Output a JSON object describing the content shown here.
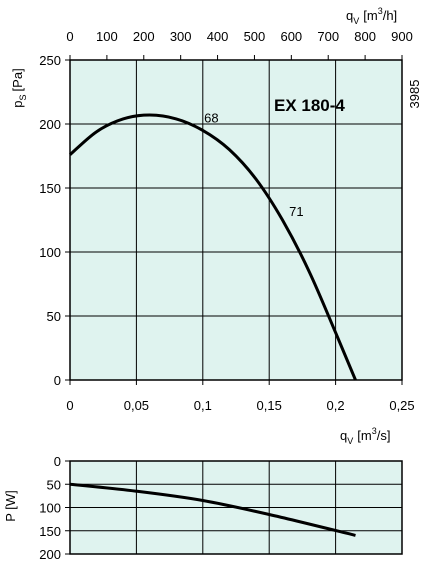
{
  "chart_data": [
    {
      "type": "line",
      "model_label": "EX 180-4",
      "code_label": "3985",
      "ylabel": "p",
      "ylabel_sub": "S",
      "ylabel_unit": "[Pa]",
      "x2label": "q",
      "x2label_sub": "V",
      "x2label_unit_a": "[m",
      "x2label_unit_sup": "3",
      "x2label_unit_b": "/h]",
      "xlim": [
        0,
        0.25
      ],
      "ylim": [
        0,
        250
      ],
      "x2lim": [
        0,
        900
      ],
      "xticks": [
        "0",
        "0,05",
        "0,1",
        "0,15",
        "0,2",
        "0,25"
      ],
      "x2ticks": [
        "0",
        "100",
        "200",
        "300",
        "400",
        "500",
        "600",
        "700",
        "800",
        "900"
      ],
      "yticks": [
        "0",
        "50",
        "100",
        "150",
        "200",
        "250"
      ],
      "grid": true,
      "series": [
        {
          "x": [
            0,
            0.02,
            0.04,
            0.06,
            0.08,
            0.1,
            0.12,
            0.14,
            0.16,
            0.18,
            0.2,
            0.215
          ],
          "y": [
            176,
            194,
            204,
            207,
            204,
            195,
            180,
            157,
            125,
            85,
            37,
            0
          ]
        }
      ],
      "annotations": [
        {
          "text": "68",
          "x": 0.101,
          "y": 201
        },
        {
          "text": "71",
          "x": 0.165,
          "y": 128
        }
      ]
    },
    {
      "type": "line",
      "ylabel": "P [W]",
      "xlabel": "q",
      "xlabel_sub": "V",
      "xlabel_unit_a": "[m",
      "xlabel_unit_sup": "3",
      "xlabel_unit_b": "/s]",
      "xlim": [
        0,
        0.25
      ],
      "ylim": [
        0,
        200
      ],
      "yticks": [
        "0",
        "50",
        "100",
        "150",
        "200"
      ],
      "grid": true,
      "series": [
        {
          "x": [
            0,
            0.05,
            0.1,
            0.15,
            0.215
          ],
          "y": [
            50,
            65,
            85,
            115,
            160
          ]
        }
      ]
    }
  ]
}
